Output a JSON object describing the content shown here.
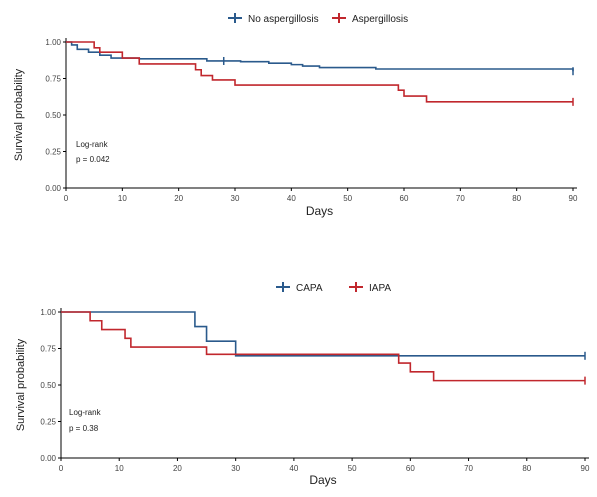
{
  "colors": {
    "series_1": "#2a5a8c",
    "series_2": "#c1272d",
    "axis": "#000000",
    "tick_text": "#444444",
    "label_text": "#222222"
  },
  "chart_data": [
    {
      "type": "line",
      "subtype": "kaplan-meier step curve",
      "xlabel": "Days",
      "ylabel": "Survival probability",
      "xlim": [
        0,
        90
      ],
      "ylim": [
        0,
        1
      ],
      "x_ticks": [
        0,
        10,
        20,
        30,
        40,
        50,
        60,
        70,
        80,
        90
      ],
      "x_tick_labels": [
        "0",
        "10",
        "20",
        "30",
        "40",
        "50",
        "60",
        "70",
        "80",
        "90"
      ],
      "y_ticks": [
        0,
        0.25,
        0.5,
        0.75,
        1.0
      ],
      "y_tick_labels": [
        "0.00",
        "0.25",
        "0.50",
        "0.75",
        "1.00"
      ],
      "grid": false,
      "legend_position": "top-center",
      "annotation": {
        "line1": "Log-rank",
        "line2": "p = 0.042"
      },
      "series": [
        {
          "name": "No aspergillosis",
          "color": "#2a5a8c",
          "steps": [
            [
              0,
              1.0
            ],
            [
              1,
              0.98
            ],
            [
              2,
              0.95
            ],
            [
              4,
              0.93
            ],
            [
              6,
              0.91
            ],
            [
              8,
              0.89
            ],
            [
              13,
              0.885
            ],
            [
              25,
              0.87
            ],
            [
              31,
              0.865
            ],
            [
              36,
              0.855
            ],
            [
              40,
              0.845
            ],
            [
              42,
              0.835
            ],
            [
              45,
              0.825
            ],
            [
              55,
              0.815
            ],
            [
              90,
              0.8
            ]
          ],
          "censored": [
            [
              28,
              0.87
            ],
            [
              90,
              0.8
            ]
          ]
        },
        {
          "name": "Aspergillosis",
          "color": "#c1272d",
          "steps": [
            [
              0,
              1.0
            ],
            [
              5,
              0.96
            ],
            [
              6,
              0.93
            ],
            [
              10,
              0.89
            ],
            [
              13,
              0.85
            ],
            [
              23,
              0.81
            ],
            [
              24,
              0.77
            ],
            [
              26,
              0.74
            ],
            [
              30,
              0.705
            ],
            [
              59,
              0.67
            ],
            [
              60,
              0.63
            ],
            [
              64,
              0.59
            ],
            [
              90,
              0.59
            ]
          ],
          "censored": [
            [
              90,
              0.59
            ]
          ]
        }
      ]
    },
    {
      "type": "line",
      "subtype": "kaplan-meier step curve",
      "xlabel": "Days",
      "ylabel": "Survival probability",
      "xlim": [
        0,
        90
      ],
      "ylim": [
        0,
        1
      ],
      "x_ticks": [
        0,
        10,
        20,
        30,
        40,
        50,
        60,
        70,
        80,
        90
      ],
      "x_tick_labels": [
        "0",
        "10",
        "20",
        "30",
        "40",
        "50",
        "60",
        "70",
        "80",
        "90"
      ],
      "y_ticks": [
        0,
        0.25,
        0.5,
        0.75,
        1.0
      ],
      "y_tick_labels": [
        "0.00",
        "0.25",
        "0.50",
        "0.75",
        "1.00"
      ],
      "grid": false,
      "legend_position": "top-center",
      "annotation": {
        "line1": "Log-rank",
        "line2": "p = 0.38"
      },
      "series": [
        {
          "name": "CAPA",
          "color": "#2a5a8c",
          "steps": [
            [
              0,
              1.0
            ],
            [
              23,
              0.9
            ],
            [
              25,
              0.8
            ],
            [
              30,
              0.7
            ],
            [
              90,
              0.7
            ]
          ],
          "censored": [
            [
              90,
              0.7
            ]
          ]
        },
        {
          "name": "IAPA",
          "color": "#c1272d",
          "steps": [
            [
              0,
              1.0
            ],
            [
              5,
              0.94
            ],
            [
              7,
              0.88
            ],
            [
              11,
              0.82
            ],
            [
              12,
              0.76
            ],
            [
              25,
              0.71
            ],
            [
              58,
              0.65
            ],
            [
              60,
              0.59
            ],
            [
              64,
              0.53
            ],
            [
              90,
              0.53
            ]
          ],
          "censored": [
            [
              90,
              0.53
            ]
          ]
        }
      ]
    }
  ]
}
